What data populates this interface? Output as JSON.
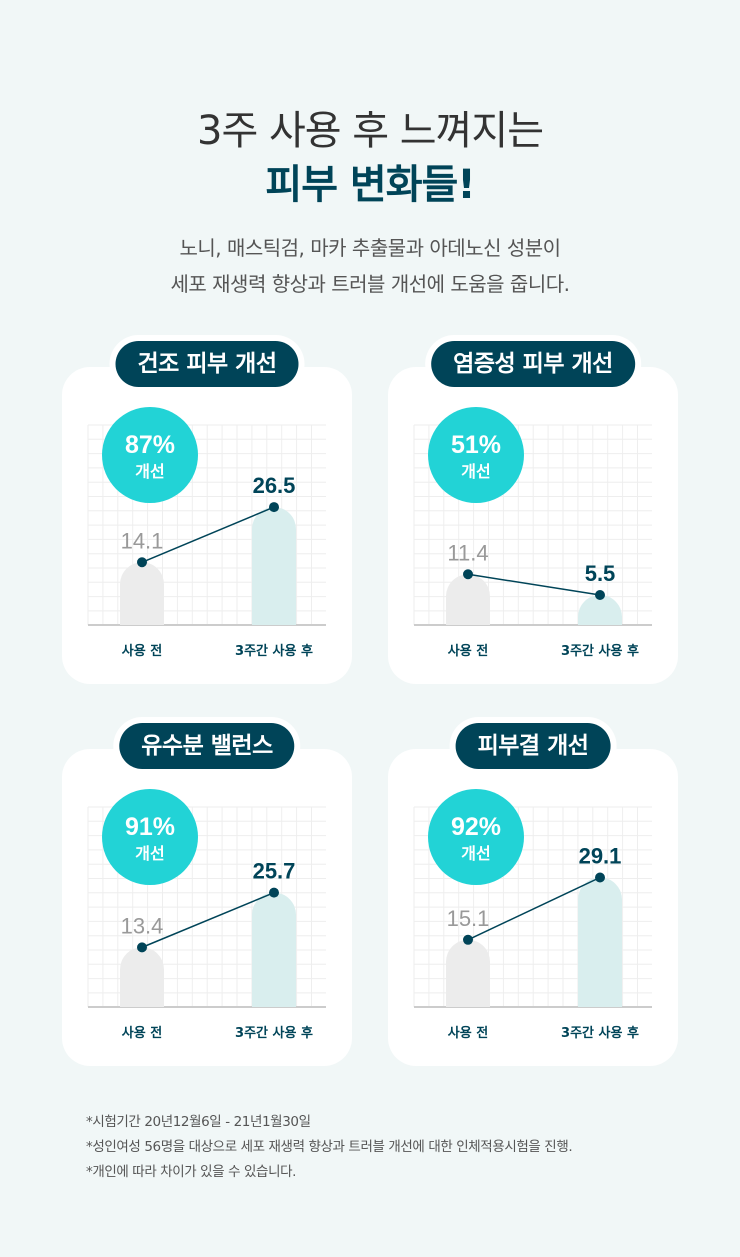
{
  "header": {
    "line1": "3주 사용 후 느껴지는",
    "line2": "피부 변화들!",
    "desc1": "노니, 매스틱검, 마카 추출물과 아데노신 성분이",
    "desc2": "세포 재생력 향상과 트러블 개선에 도움을 줍니다."
  },
  "colors": {
    "dark": "#004458",
    "cyan": "#22d3d6",
    "before_bar": "#ececec",
    "after_bar": "#d9eeee",
    "before_text": "#999999"
  },
  "chart_data": [
    {
      "type": "bar",
      "title": "건조 피부 개선",
      "badge_value": "87%",
      "badge_label": "개선",
      "categories": [
        "사용 전",
        "3주간 사용 후"
      ],
      "values": [
        14.1,
        26.5
      ],
      "value_labels": [
        "14.1",
        "26.5"
      ]
    },
    {
      "type": "bar",
      "title": "염증성 피부 개선",
      "badge_value": "51%",
      "badge_label": "개선",
      "categories": [
        "사용 전",
        "3주간 사용 후"
      ],
      "values": [
        11.4,
        5.5
      ],
      "value_labels": [
        "11.4",
        "5.5"
      ]
    },
    {
      "type": "bar",
      "title": "유수분 밸런스",
      "badge_value": "91%",
      "badge_label": "개선",
      "categories": [
        "사용 전",
        "3주간 사용 후"
      ],
      "values": [
        13.4,
        25.7
      ],
      "value_labels": [
        "13.4",
        "25.7"
      ]
    },
    {
      "type": "bar",
      "title": "피부결 개선",
      "badge_value": "92%",
      "badge_label": "개선",
      "categories": [
        "사용 전",
        "3주간 사용 후"
      ],
      "values": [
        15.1,
        29.1
      ],
      "value_labels": [
        "15.1",
        "29.1"
      ]
    }
  ],
  "notes": [
    "*시험기간 20년12월6일 - 21년1월30일",
    "*성인여성 56명을 대상으로 세포 재생력 향상과 트러블 개선에 대한 인체적용시험을 진행.",
    "*개인에 따라 차이가 있을 수 있습니다."
  ]
}
